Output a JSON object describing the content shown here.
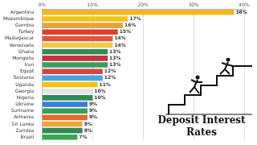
{
  "chart_data": {
    "type": "bar",
    "orientation": "horizontal",
    "title": "Deposit Interest Rates",
    "categories": [
      "Argentina",
      "Mozambique",
      "Gambia",
      "Turkey",
      "Madagascar",
      "Venezuela",
      "Ghana",
      "Mongolia",
      "Iran",
      "Egypt",
      "Tanzania",
      "Uganda",
      "Georgia",
      "Nigeria",
      "Ukraine",
      "Suriname",
      "Armenia",
      "Sri Lanka",
      "Zambia",
      "Brazil"
    ],
    "values": [
      38,
      17,
      16,
      15,
      14,
      14,
      13,
      13,
      13,
      12,
      12,
      11,
      10,
      10,
      9,
      9,
      9,
      8,
      8,
      7
    ],
    "value_labels": [
      "38%",
      "17%",
      "16%",
      "15%",
      "14%",
      "14%",
      "13%",
      "13%",
      "13%",
      "12%",
      "12%",
      "11%",
      "10%",
      "10%",
      "9%",
      "9%",
      "9%",
      "8%",
      "8%",
      "7%"
    ],
    "colors": [
      "#f2b71e",
      "#f0c419",
      "#e8a33a",
      "#e03c31",
      "#d95a3b",
      "#f2c94c",
      "#2e8b57",
      "#c8323c",
      "#3a9d5d",
      "#d64541",
      "#4aa3df",
      "#f4c20d",
      "#e5e5e5",
      "#2e8b57",
      "#3b7dd8",
      "#3a9d5d",
      "#e46b2c",
      "#f0a830",
      "#2e8b57",
      "#3aa655"
    ],
    "xlim": [
      0,
      40
    ],
    "xticks": [
      {
        "value": 0,
        "label": "0%"
      },
      {
        "value": 10,
        "label": "10%"
      },
      {
        "value": 20,
        "label": "20%"
      },
      {
        "value": 30,
        "label": "30%"
      },
      {
        "value": 40,
        "label": "40%"
      }
    ],
    "grid": true,
    "data_labels": true
  }
}
